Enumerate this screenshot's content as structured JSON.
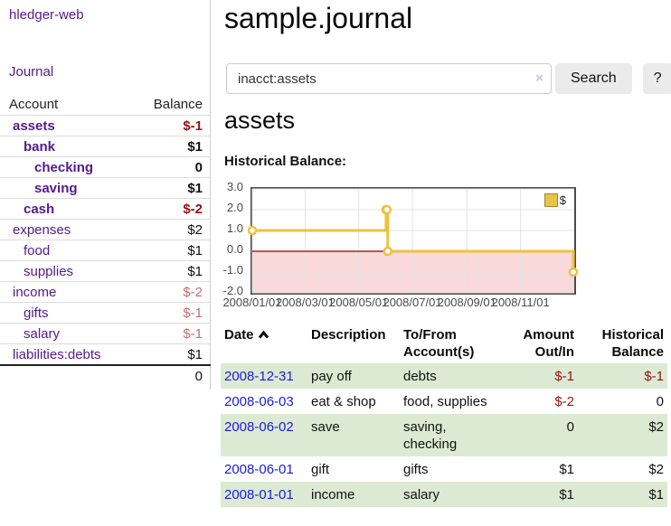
{
  "colors": {
    "link_purple": "#551a8b",
    "link_blue": "#2222dd",
    "date_link_blue": "#1b1be0",
    "negative_strong": "#991111",
    "negative_soft": "#c36f6f",
    "row_green": "#dcead3",
    "series_yellow": "#EDC240",
    "button_gray": "#ebebeb"
  },
  "sidebar": {
    "app_title": "hledger-web",
    "nav": {
      "journal": "Journal"
    },
    "table": {
      "account_header": "Account",
      "balance_header": "Balance",
      "accounts": [
        {
          "name": "assets",
          "balance": "$-1",
          "depth": 1,
          "in_filter": true,
          "balance_tone": "negative-strong"
        },
        {
          "name": "bank",
          "balance": "$1",
          "depth": 2,
          "in_filter": true,
          "balance_tone": "normal"
        },
        {
          "name": "checking",
          "balance": "0",
          "depth": 3,
          "in_filter": true,
          "balance_tone": "normal"
        },
        {
          "name": "saving",
          "balance": "$1",
          "depth": 3,
          "in_filter": true,
          "balance_tone": "normal"
        },
        {
          "name": "cash",
          "balance": "$-2",
          "depth": 2,
          "in_filter": true,
          "balance_tone": "negative-strong"
        },
        {
          "name": "expenses",
          "balance": "$2",
          "depth": 1,
          "in_filter": false,
          "balance_tone": "normal"
        },
        {
          "name": "food",
          "balance": "$1",
          "depth": 2,
          "in_filter": false,
          "balance_tone": "normal"
        },
        {
          "name": "supplies",
          "balance": "$1",
          "depth": 2,
          "in_filter": false,
          "balance_tone": "normal"
        },
        {
          "name": "income",
          "balance": "$-2",
          "depth": 1,
          "in_filter": false,
          "balance_tone": "negative-soft"
        },
        {
          "name": "gifts",
          "balance": "$-1",
          "depth": 2,
          "in_filter": false,
          "balance_tone": "negative-soft"
        },
        {
          "name": "salary",
          "balance": "$-1",
          "depth": 2,
          "in_filter": false,
          "balance_tone": "negative-soft"
        },
        {
          "name": "liabilities:debts",
          "balance": "$1",
          "depth": 1,
          "in_filter": false,
          "balance_tone": "normal"
        }
      ],
      "total": "0"
    }
  },
  "main": {
    "title": "sample.journal",
    "search": {
      "value": "inacct:assets",
      "clear_icon": "×",
      "search_button": "Search",
      "help_button": "?"
    },
    "section_title": "assets",
    "chart_title": "Historical Balance:"
  },
  "chart_data": {
    "type": "line",
    "step": true,
    "title": "Historical Balance",
    "series": [
      {
        "name": "$",
        "color": "#EDC240",
        "points": [
          [
            "2008-01-01",
            1
          ],
          [
            "2008-06-01",
            2
          ],
          [
            "2008-06-02",
            2
          ],
          [
            "2008-06-03",
            0
          ],
          [
            "2008-12-31",
            -1
          ]
        ]
      }
    ],
    "ylim": [
      -2,
      3
    ],
    "yticks": [
      "3.0",
      "2.0",
      "1.0",
      "0.0",
      "-1.0",
      "-2.0"
    ],
    "xlim": [
      "2008-01-01",
      "2009-01-01"
    ],
    "xticks": [
      "2008/01/01",
      "2008/03/01",
      "2008/05/01",
      "2008/07/01",
      "2008/09/01",
      "2008/11/01"
    ],
    "grid": true,
    "legend_position": "top-right",
    "negative_region_color": "#f9d9d9",
    "zero_line_color": "#8b0000",
    "grid_color": "#e3e3e3"
  },
  "register": {
    "headers": {
      "date": "Date",
      "description": "Description",
      "accounts_l1": "To/From",
      "accounts_l2": "Account(s)",
      "amount_l1": "Amount",
      "amount_l2": "Out/In",
      "balance_l1": "Historical",
      "balance_l2": "Balance"
    },
    "rows": [
      {
        "date": "2008-12-31",
        "description": "pay off",
        "accounts": "debts",
        "amount": "$-1",
        "balance": "$-1"
      },
      {
        "date": "2008-06-03",
        "description": "eat & shop",
        "accounts": "food, supplies",
        "amount": "$-2",
        "balance": "0"
      },
      {
        "date": "2008-06-02",
        "description": "save",
        "accounts": "saving, checking",
        "amount": "0",
        "balance": "$2"
      },
      {
        "date": "2008-06-01",
        "description": "gift",
        "accounts": "gifts",
        "amount": "$1",
        "balance": "$2"
      },
      {
        "date": "2008-01-01",
        "description": "income",
        "accounts": "salary",
        "amount": "$1",
        "balance": "$1"
      }
    ]
  }
}
